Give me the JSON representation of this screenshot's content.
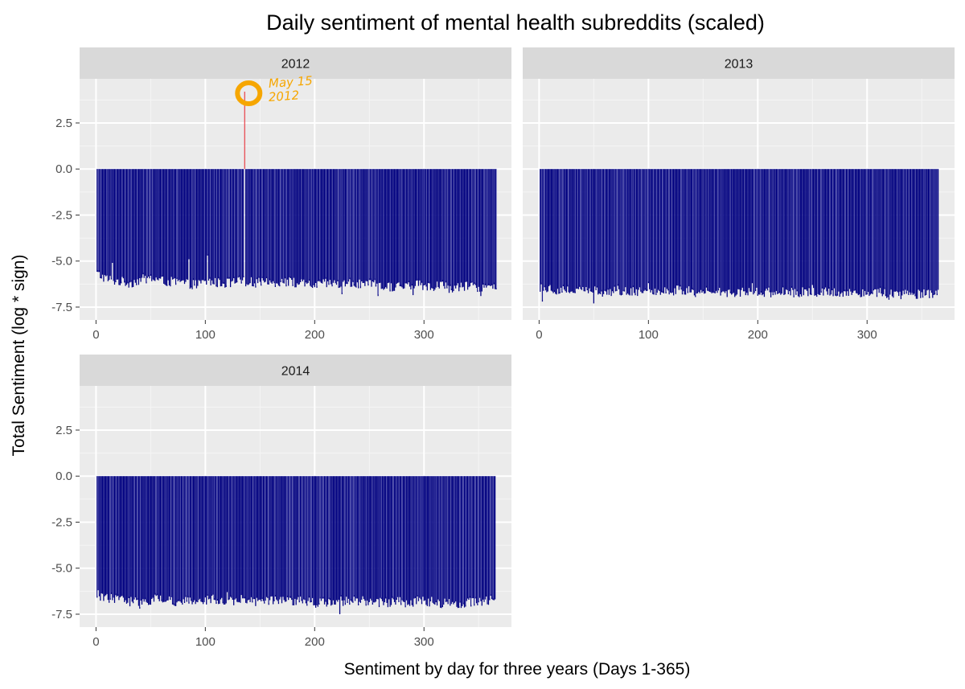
{
  "chart_data": {
    "type": "bar",
    "title": "Daily sentiment of mental health subreddits (scaled)",
    "xlabel": "Sentiment by day for three years (Days 1-365)",
    "ylabel": "Total Sentiment (log * sign)",
    "xlim": [
      -15,
      380
    ],
    "ylim": [
      -8.2,
      4.9
    ],
    "x_ticks": [
      0,
      100,
      200,
      300
    ],
    "y_ticks": [
      2.5,
      0.0,
      -2.5,
      -5.0,
      -7.5
    ],
    "y_tick_labels": [
      "2.5",
      "0.0",
      "-2.5",
      "-5.0",
      "-7.5"
    ],
    "grid": true,
    "legend": "none",
    "colors": {
      "bar": "#000080",
      "highlight": "#e8474e",
      "annotation": "#f6a600",
      "panel_bg": "#ebebeb",
      "strip_bg": "#d9d9d9"
    },
    "panels": [
      {
        "name": "2012",
        "days": [
          1,
          366
        ],
        "baseline": [
          -5.7,
          -6.0,
          -6.1,
          -6.2,
          -6.0,
          -5.95,
          -6.1,
          -6.15,
          -6.2,
          -6.3,
          -6.1,
          -6.2,
          -6.2,
          -6.1,
          -6.15,
          -6.2,
          -6.15,
          -6.1,
          -6.2,
          -6.3,
          -6.3,
          -6.2,
          -6.3,
          -6.2,
          -6.3,
          -6.3,
          -6.4,
          -6.4,
          -6.3,
          -6.3,
          -6.4,
          -6.3,
          -6.5,
          -6.4,
          -6.4,
          -6.4,
          -6.5
        ],
        "spikes": [
          [
            0,
            -5.3
          ],
          [
            15,
            -5.1
          ],
          [
            85,
            -4.9
          ],
          [
            102,
            -4.7
          ],
          [
            225,
            -6.8
          ],
          [
            258,
            -6.9
          ],
          [
            290,
            -6.85
          ],
          [
            352,
            -6.9
          ]
        ],
        "highlight": {
          "day": 136,
          "value": 4.2
        }
      },
      {
        "name": "2013",
        "days": [
          1,
          365
        ],
        "baseline": [
          -6.4,
          -6.5,
          -6.6,
          -6.6,
          -6.6,
          -6.6,
          -6.7,
          -6.6,
          -6.7,
          -6.6,
          -6.6,
          -6.7,
          -6.6,
          -6.6,
          -6.7,
          -6.7,
          -6.6,
          -6.7,
          -6.7,
          -6.6,
          -6.7,
          -6.7,
          -6.7,
          -6.7,
          -6.7,
          -6.7,
          -6.7,
          -6.7,
          -6.7,
          -6.7,
          -6.7,
          -6.7,
          -6.8,
          -6.8,
          -6.8,
          -6.8,
          -6.7
        ],
        "spikes": [
          [
            3,
            -7.2
          ],
          [
            50,
            -7.3
          ],
          [
            100,
            -6.2
          ],
          [
            195,
            -6.2
          ],
          [
            250,
            -6.3
          ],
          [
            320,
            -7.1
          ],
          [
            360,
            -7.0
          ]
        ],
        "highlight": null
      },
      {
        "name": "2014",
        "days": [
          1,
          365
        ],
        "baseline": [
          -6.5,
          -6.6,
          -6.7,
          -6.8,
          -6.8,
          -6.7,
          -6.7,
          -6.8,
          -6.8,
          -6.8,
          -6.7,
          -6.7,
          -6.8,
          -6.7,
          -6.8,
          -6.8,
          -6.8,
          -6.8,
          -6.8,
          -6.8,
          -6.9,
          -6.9,
          -6.8,
          -6.8,
          -6.8,
          -6.8,
          -6.9,
          -6.8,
          -6.9,
          -6.8,
          -6.8,
          -6.9,
          -6.9,
          -6.9,
          -6.8,
          -6.8,
          -6.7
        ],
        "spikes": [
          [
            2,
            -6.2
          ],
          [
            40,
            -7.2
          ],
          [
            120,
            -6.3
          ],
          [
            223,
            -7.5
          ],
          [
            270,
            -7.0
          ],
          [
            330,
            -7.1
          ]
        ],
        "highlight": null
      }
    ],
    "annotation": {
      "text_lines": [
        "May 15",
        "2012"
      ],
      "panel": "2012",
      "day": 136
    }
  }
}
